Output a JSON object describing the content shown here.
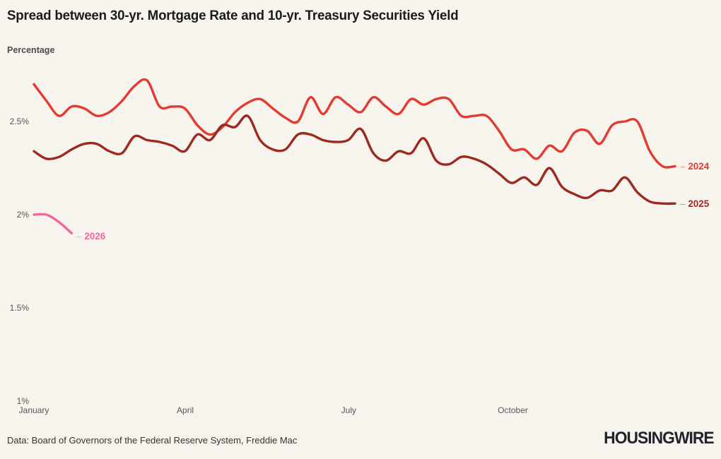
{
  "header": {
    "title": "Spread between 30-yr. Mortgage Rate and 10-yr. Treasury Securities Yield",
    "subtitle": "Percentage"
  },
  "chart_data": {
    "type": "line",
    "title": "Spread between 30-yr. Mortgage Rate and 10-yr. Treasury Securities Yield",
    "ylabel": "Percentage",
    "unit": "%",
    "grid": "off",
    "legend_position": "line-end-labels",
    "y_axis": {
      "range": [
        1.0,
        2.8
      ],
      "ticks": [
        {
          "label": "2.5%",
          "value": 2.5
        },
        {
          "label": "2%",
          "value": 2.0
        },
        {
          "label": "1.5%",
          "value": 1.5
        },
        {
          "label": "1%",
          "value": 1.0
        }
      ]
    },
    "x_axis": {
      "ticks": [
        {
          "label": "January",
          "month_index": 0
        },
        {
          "label": "April",
          "month_index": 3
        },
        {
          "label": "July",
          "month_index": 6
        },
        {
          "label": "October",
          "month_index": 9
        }
      ]
    },
    "series": [
      {
        "name": "2024",
        "color": "#e23c32",
        "values": [
          2.7,
          2.61,
          2.53,
          2.58,
          2.57,
          2.53,
          2.55,
          2.61,
          2.69,
          2.72,
          2.58,
          2.58,
          2.57,
          2.48,
          2.43,
          2.47,
          2.55,
          2.6,
          2.62,
          2.57,
          2.52,
          2.5,
          2.63,
          2.54,
          2.63,
          2.59,
          2.55,
          2.63,
          2.58,
          2.54,
          2.62,
          2.59,
          2.62,
          2.62,
          2.53,
          2.53,
          2.53,
          2.45,
          2.35,
          2.35,
          2.3,
          2.37,
          2.34,
          2.44,
          2.45,
          2.38,
          2.48,
          2.5,
          2.5,
          2.34,
          2.26,
          2.26
        ]
      },
      {
        "name": "2025",
        "color": "#9c2a21",
        "values": [
          2.34,
          2.3,
          2.31,
          2.35,
          2.38,
          2.38,
          2.34,
          2.33,
          2.42,
          2.4,
          2.39,
          2.37,
          2.34,
          2.43,
          2.4,
          2.48,
          2.47,
          2.53,
          2.4,
          2.35,
          2.35,
          2.43,
          2.43,
          2.4,
          2.39,
          2.4,
          2.46,
          2.33,
          2.29,
          2.34,
          2.33,
          2.41,
          2.29,
          2.27,
          2.31,
          2.3,
          2.27,
          2.22,
          2.17,
          2.2,
          2.16,
          2.25,
          2.15,
          2.11,
          2.09,
          2.13,
          2.13,
          2.2,
          2.12,
          2.07,
          2.06,
          2.06
        ]
      },
      {
        "name": "2026",
        "color": "#f2679c",
        "values": [
          2.0,
          2.0,
          1.96,
          1.9
        ]
      }
    ]
  },
  "footer": {
    "source": "Data: Board of Governors of the Federal Reserve System, Freddie Mac",
    "brand": "HOUSINGWIRE"
  }
}
